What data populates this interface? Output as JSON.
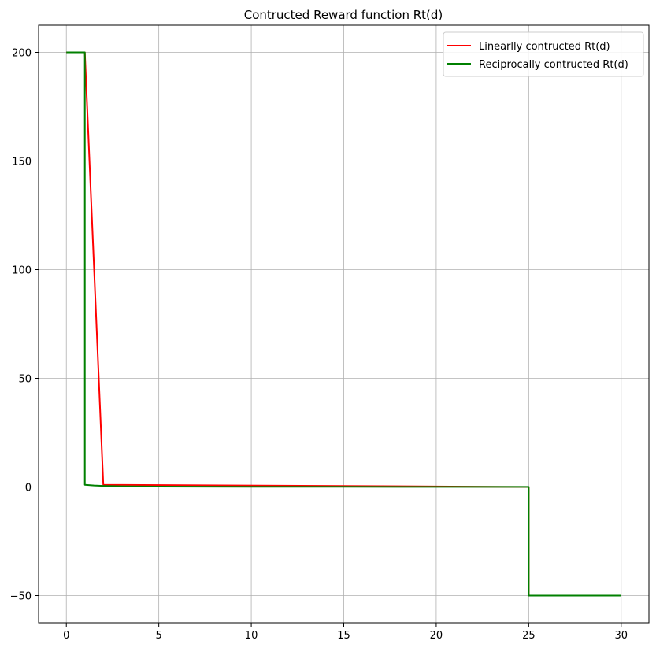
{
  "chart_data": {
    "type": "line",
    "title": "Contructed Reward function Rt(d)",
    "xlabel": "",
    "ylabel": "",
    "xlim": [
      -1.5,
      31.5
    ],
    "ylim": [
      -62.5,
      212.5
    ],
    "xticks": [
      0,
      5,
      10,
      15,
      20,
      25,
      30
    ],
    "yticks": [
      -50,
      0,
      50,
      100,
      150,
      200
    ],
    "xtick_labels": [
      "0",
      "5",
      "10",
      "15",
      "20",
      "25",
      "30"
    ],
    "ytick_labels": [
      "−50",
      "0",
      "50",
      "100",
      "150",
      "200"
    ],
    "grid": true,
    "legend_position": "top-right",
    "series": [
      {
        "name": "Linearlly contructed Rt(d)",
        "color": "#ff0000",
        "points": [
          [
            0,
            200
          ],
          [
            1,
            200
          ],
          [
            2,
            1
          ],
          [
            25,
            0
          ],
          [
            25,
            -50
          ],
          [
            30,
            -50
          ]
        ]
      },
      {
        "name": "Reciprocally contructed Rt(d)",
        "color": "#008000",
        "points": [
          [
            0,
            200
          ],
          [
            1,
            200
          ],
          [
            1,
            1
          ],
          [
            1.5,
            0.67
          ],
          [
            2,
            0.5
          ],
          [
            3,
            0.33
          ],
          [
            5,
            0.2
          ],
          [
            10,
            0.1
          ],
          [
            15,
            0.07
          ],
          [
            20,
            0.05
          ],
          [
            25,
            0.04
          ],
          [
            25,
            -50
          ],
          [
            30,
            -50
          ]
        ]
      }
    ]
  }
}
